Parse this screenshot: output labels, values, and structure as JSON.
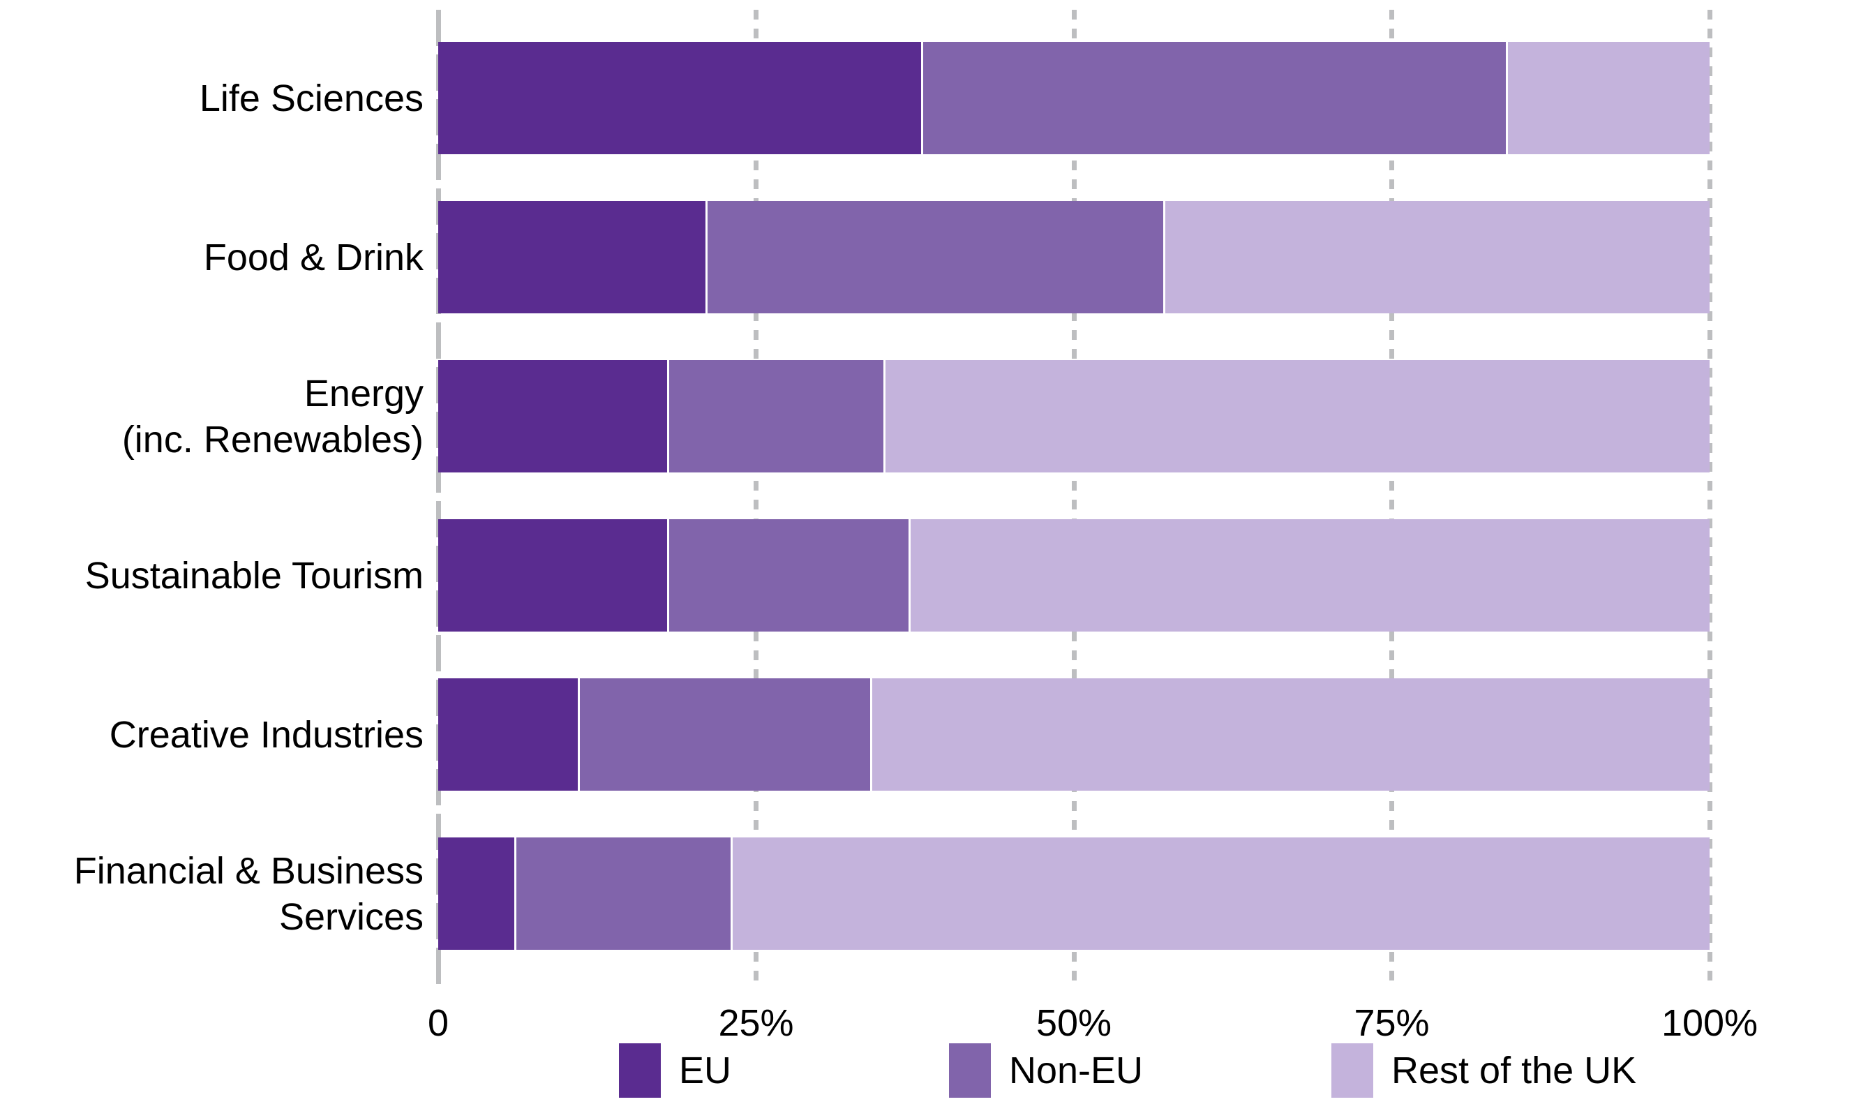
{
  "chart_data": {
    "type": "bar",
    "stacked": true,
    "orientation": "horizontal",
    "title": "",
    "categories": [
      "Life Sciences",
      "Food & Drink",
      "Energy\n(inc. Renewables)",
      "Sustainable Tourism",
      "Creative Industries",
      "Financial & Business\nServices"
    ],
    "series": [
      {
        "name": "EU",
        "color": "#5a2c90",
        "values": [
          38,
          21,
          18,
          18,
          11,
          6
        ]
      },
      {
        "name": "Non-EU",
        "color": "#8164ab",
        "values": [
          46,
          36,
          17,
          19,
          23,
          17
        ]
      },
      {
        "name": "Rest of the UK",
        "color": "#c4b3dc",
        "values": [
          16,
          43,
          65,
          63,
          66,
          77
        ]
      }
    ],
    "x_axis": {
      "range": [
        0,
        100
      ],
      "tick_values": [
        0,
        25,
        50,
        75,
        100
      ],
      "tick_labels": [
        "0",
        "25%",
        "50%",
        "75%",
        "100%"
      ],
      "gridlines": "vertical-dashed"
    },
    "legend": {
      "position": "bottom",
      "entries": [
        "EU",
        "Non-EU",
        "Rest of the UK"
      ]
    },
    "colors": {
      "grid": "#bdbec0",
      "segment_separator": "#ffffff",
      "background": "#ffffff",
      "text": "#000000"
    }
  }
}
